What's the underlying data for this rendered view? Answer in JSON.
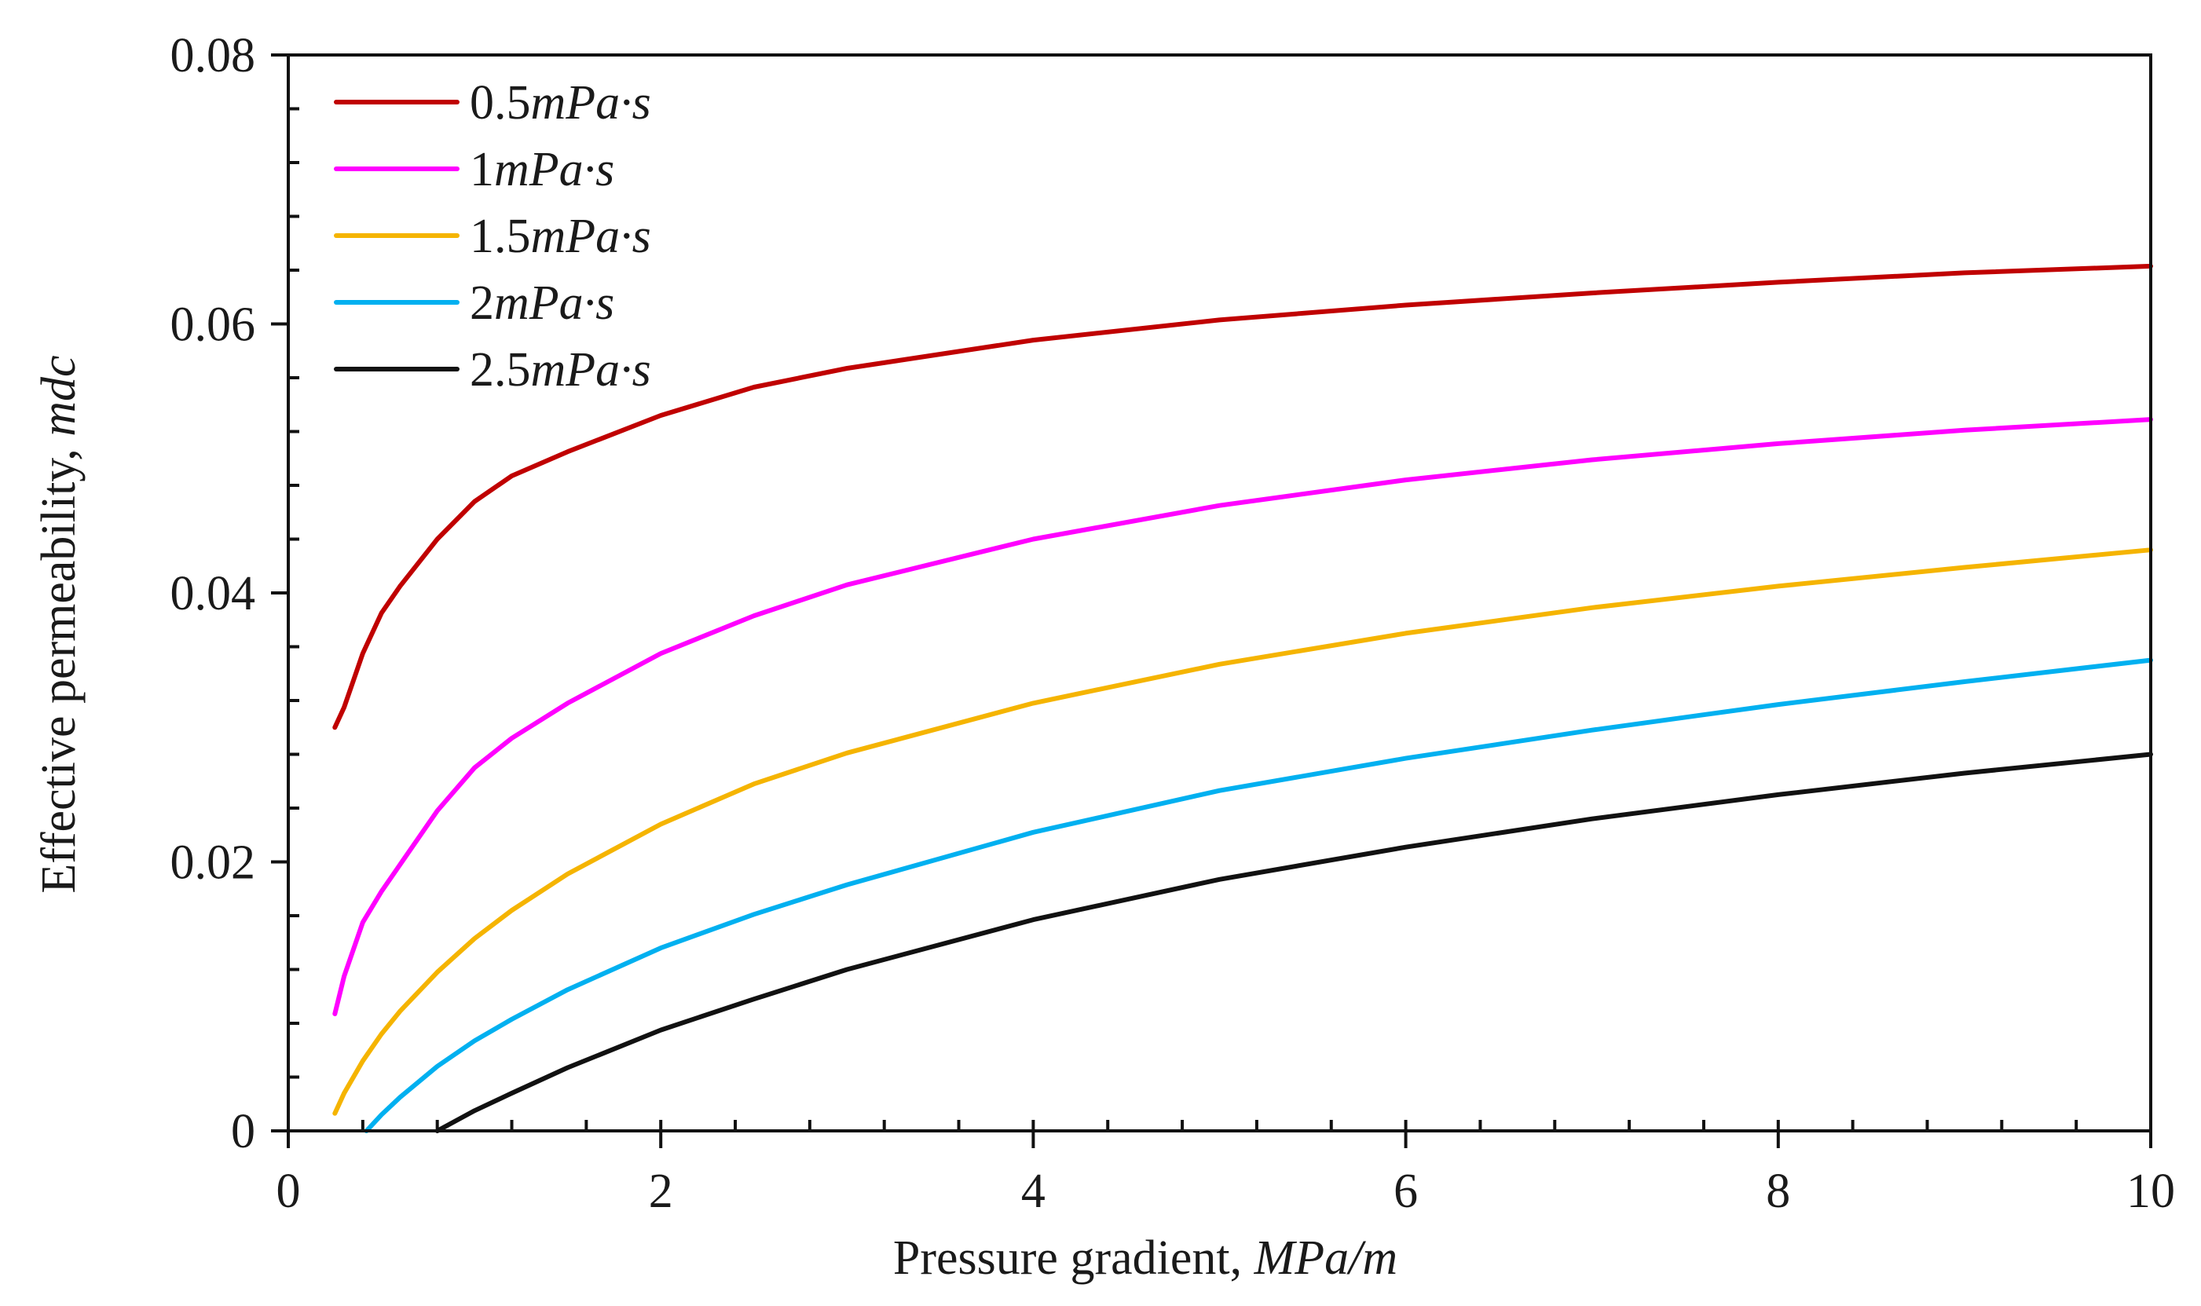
{
  "chart_data": {
    "type": "line",
    "title": "",
    "xlabel": "Pressure gradient, ",
    "xlabel_unit": "MPa/m",
    "ylabel": "Effective permeability, ",
    "ylabel_unit": "mdc",
    "xlim": [
      0,
      10
    ],
    "ylim": [
      0,
      0.08
    ],
    "xticks": [
      0,
      2,
      4,
      6,
      8,
      10
    ],
    "xtick_labels": [
      "0",
      "2",
      "4",
      "6",
      "8",
      "10"
    ],
    "yticks": [
      0,
      0.02,
      0.04,
      0.06,
      0.08
    ],
    "ytick_labels": [
      "0",
      "0.02",
      "0.04",
      "0.06",
      "0.08"
    ],
    "x_minor_step": 0.4,
    "y_minor_step": 0.004,
    "legend_position": "top-left",
    "grid": false,
    "series": [
      {
        "name": "0.5",
        "unit": "mPa·s",
        "color": "#c00000",
        "x": [
          0.25,
          0.3,
          0.35,
          0.4,
          0.5,
          0.6,
          0.8,
          1.0,
          1.2,
          1.5,
          2.0,
          2.5,
          3,
          4,
          5,
          6,
          7,
          8,
          9,
          10
        ],
        "y": [
          0.03,
          0.0315,
          0.0335,
          0.0355,
          0.0385,
          0.0405,
          0.044,
          0.0468,
          0.0487,
          0.0505,
          0.0532,
          0.0553,
          0.0567,
          0.0588,
          0.0603,
          0.0614,
          0.0623,
          0.0631,
          0.0638,
          0.0643
        ]
      },
      {
        "name": "1",
        "unit": "mPa·s",
        "color": "#ff00ff",
        "x": [
          0.25,
          0.3,
          0.4,
          0.5,
          0.6,
          0.8,
          1.0,
          1.2,
          1.5,
          2.0,
          2.5,
          3,
          4,
          5,
          6,
          7,
          8,
          9,
          10
        ],
        "y": [
          0.0087,
          0.0115,
          0.0155,
          0.0178,
          0.0198,
          0.0238,
          0.027,
          0.0292,
          0.0318,
          0.0355,
          0.0383,
          0.0406,
          0.044,
          0.0465,
          0.0484,
          0.0499,
          0.0511,
          0.0521,
          0.0529
        ]
      },
      {
        "name": "1.5",
        "unit": "mPa·s",
        "color": "#f5b400",
        "x": [
          0.25,
          0.3,
          0.4,
          0.5,
          0.6,
          0.8,
          1.0,
          1.2,
          1.5,
          2.0,
          2.5,
          3,
          4,
          5,
          6,
          7,
          8,
          9,
          10
        ],
        "y": [
          0.0013,
          0.0028,
          0.0052,
          0.0072,
          0.0089,
          0.0118,
          0.0143,
          0.0164,
          0.0191,
          0.0228,
          0.0258,
          0.0281,
          0.0318,
          0.0347,
          0.037,
          0.0389,
          0.0405,
          0.0419,
          0.0432
        ]
      },
      {
        "name": "2",
        "unit": "mPa·s",
        "color": "#00b0f0",
        "x": [
          0.42,
          0.5,
          0.6,
          0.8,
          1.0,
          1.2,
          1.5,
          2.0,
          2.5,
          3,
          4,
          5,
          6,
          7,
          8,
          9,
          10
        ],
        "y": [
          0.0,
          0.0012,
          0.0025,
          0.0048,
          0.0067,
          0.0083,
          0.0105,
          0.0136,
          0.0161,
          0.0183,
          0.0222,
          0.0253,
          0.0277,
          0.0298,
          0.0317,
          0.0334,
          0.035
        ]
      },
      {
        "name": "2.5",
        "unit": "mPa·s",
        "color": "#111111",
        "x": [
          0.8,
          1.0,
          1.2,
          1.5,
          2.0,
          2.5,
          3,
          4,
          5,
          6,
          7,
          8,
          9,
          10
        ],
        "y": [
          0.0,
          0.0015,
          0.0028,
          0.0047,
          0.0075,
          0.0098,
          0.012,
          0.0157,
          0.0187,
          0.0211,
          0.0232,
          0.025,
          0.0266,
          0.028
        ]
      }
    ]
  }
}
